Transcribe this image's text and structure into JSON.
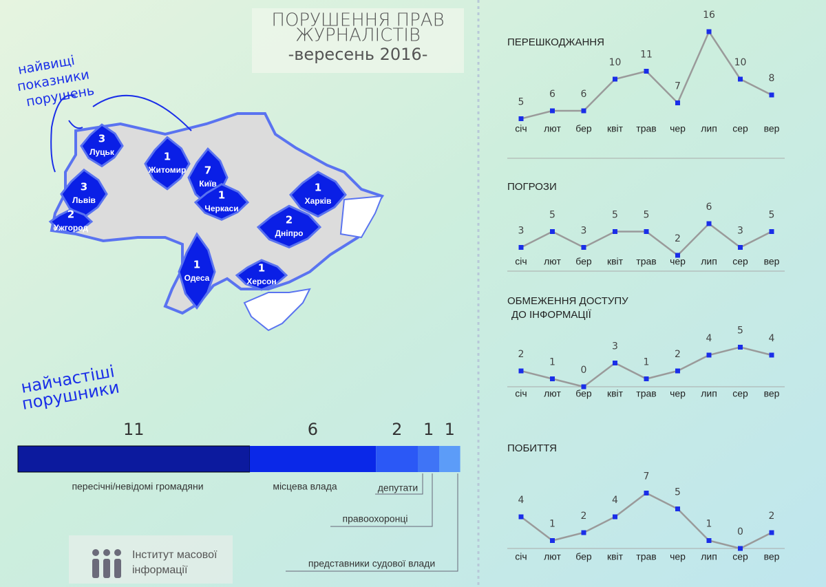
{
  "header": {
    "title": [
      "ПОРУШЕННЯ ПРАВ",
      "ЖУРНАЛІСТІВ"
    ],
    "subtitle": "-вересень 2016-"
  },
  "map": {
    "annotation": [
      "найвищі",
      "показники",
      "порушень"
    ],
    "regions": [
      {
        "value": 3,
        "label": "Луцьк"
      },
      {
        "value": 3,
        "label": "Львів"
      },
      {
        "value": 2,
        "label": "Ужгород"
      },
      {
        "value": 1,
        "label": "Житомир"
      },
      {
        "value": 7,
        "label": "Київ"
      },
      {
        "value": 1,
        "label": "Черкаси"
      },
      {
        "value": 1,
        "label": "Харків"
      },
      {
        "value": 2,
        "label": "Дніпро"
      },
      {
        "value": 1,
        "label": "Одеса"
      },
      {
        "value": 1,
        "label": "Херсон"
      }
    ]
  },
  "chart_data": [
    {
      "type": "line",
      "title": [
        "ПЕРЕШКОДЖАННЯ"
      ],
      "categories": [
        "січ",
        "лют",
        "бер",
        "квіт",
        "трав",
        "чер",
        "лип",
        "сер",
        "вер"
      ],
      "values": [
        5,
        6,
        6,
        10,
        11,
        7,
        16,
        10,
        8
      ],
      "color": "#1a2ee8",
      "line_color": "#9a9a9a"
    },
    {
      "type": "line",
      "title": [
        "ПОГРОЗИ"
      ],
      "categories": [
        "січ",
        "лют",
        "бер",
        "квіт",
        "трав",
        "чер",
        "лип",
        "сер",
        "вер"
      ],
      "values": [
        3,
        5,
        3,
        5,
        5,
        2,
        6,
        3,
        5
      ],
      "color": "#1a2ee8",
      "line_color": "#9a9a9a"
    },
    {
      "type": "line",
      "title": [
        "ОБМЕЖЕННЯ ДОСТУПУ",
        "ДО ІНФОРМАЦІЇ"
      ],
      "categories": [
        "січ",
        "лют",
        "бер",
        "квіт",
        "трав",
        "чер",
        "лип",
        "сер",
        "вер"
      ],
      "values": [
        2,
        1,
        0,
        3,
        1,
        2,
        4,
        5,
        4
      ],
      "color": "#1a2ee8",
      "line_color": "#9a9a9a"
    },
    {
      "type": "line",
      "title": [
        "ПОБИТТЯ"
      ],
      "categories": [
        "січ",
        "лют",
        "бер",
        "квіт",
        "трав",
        "чер",
        "лип",
        "сер",
        "вер"
      ],
      "values": [
        4,
        1,
        2,
        4,
        7,
        5,
        1,
        0,
        2
      ],
      "color": "#1a2ee8",
      "line_color": "#9a9a9a"
    },
    {
      "type": "stacked-bar",
      "title": [
        "найчастіші",
        "порушники"
      ],
      "series": [
        {
          "name": "пересічні/невідомі громадяни",
          "color": "#0c1a9e",
          "values": [
            11
          ]
        },
        {
          "name": "місцева влада",
          "color": "#0a28e8",
          "values": [
            6
          ]
        },
        {
          "name": "депутати",
          "color": "#2b58f6",
          "values": [
            2
          ]
        },
        {
          "name": "правоохоронці",
          "color": "#3f74f6",
          "values": [
            1
          ]
        },
        {
          "name": "представники судової влади",
          "color": "#5c9cf8",
          "values": [
            1
          ]
        }
      ]
    }
  ],
  "logo": {
    "text": [
      "Інститут масової",
      "інформації"
    ]
  }
}
